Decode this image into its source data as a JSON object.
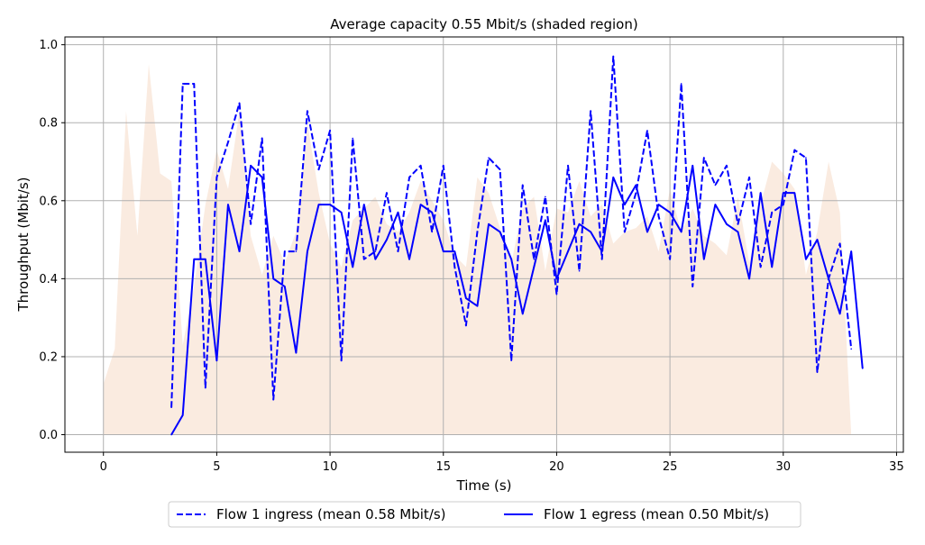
{
  "chart_data": {
    "type": "line",
    "title": "Average capacity 0.55 Mbit/s (shaded region)",
    "xlabel": "Time (s)",
    "ylabel": "Throughput (Mbit/s)",
    "xlim": [
      -1.7,
      35.3
    ],
    "ylim": [
      -0.045,
      1.02
    ],
    "xticks": [
      0,
      5,
      10,
      15,
      20,
      25,
      30,
      35
    ],
    "yticks": [
      0.0,
      0.2,
      0.4,
      0.6,
      0.8,
      1.0
    ],
    "xtick_labels": [
      "0",
      "5",
      "10",
      "15",
      "20",
      "25",
      "30",
      "35"
    ],
    "ytick_labels": [
      "0.0",
      "0.2",
      "0.4",
      "0.6",
      "0.8",
      "1.0"
    ],
    "grid": true,
    "legend_position": "bottom-center-outside",
    "capacity": {
      "color": "#faebe0",
      "x": [
        0,
        0.5,
        1,
        1.5,
        2,
        2.5,
        3,
        3.5,
        4,
        4.5,
        5,
        5.5,
        6,
        6.5,
        7,
        7.5,
        8,
        8.5,
        9,
        9.5,
        10,
        10.5,
        11,
        11.5,
        12,
        12.5,
        13,
        13.5,
        14,
        14.5,
        15,
        15.5,
        16,
        16.5,
        17,
        17.5,
        18,
        18.5,
        19,
        19.5,
        20,
        20.5,
        21,
        21.5,
        22,
        22.5,
        23,
        23.5,
        24,
        24.5,
        25,
        25.5,
        26,
        26.5,
        27,
        27.5,
        28,
        28.5,
        29,
        29.5,
        30,
        30.5,
        31,
        31.5,
        32,
        32.5,
        33
      ],
      "values": [
        0.13,
        0.22,
        0.83,
        0.51,
        0.95,
        0.67,
        0.65,
        0.23,
        0.38,
        0.59,
        0.73,
        0.63,
        0.83,
        0.51,
        0.41,
        0.51,
        0.44,
        0.52,
        0.8,
        0.62,
        0.49,
        0.43,
        0.55,
        0.58,
        0.61,
        0.54,
        0.52,
        0.57,
        0.65,
        0.6,
        0.55,
        0.46,
        0.43,
        0.66,
        0.62,
        0.53,
        0.44,
        0.58,
        0.61,
        0.42,
        0.58,
        0.57,
        0.65,
        0.56,
        0.59,
        0.49,
        0.52,
        0.53,
        0.56,
        0.47,
        0.63,
        0.52,
        0.58,
        0.51,
        0.49,
        0.46,
        0.61,
        0.44,
        0.59,
        0.7,
        0.67,
        0.63,
        0.41,
        0.52,
        0.7,
        0.57,
        0.0
      ]
    },
    "series": [
      {
        "name": "Flow 1 ingress (mean 0.58 Mbit/s)",
        "color": "#0000ff",
        "style": "dashed",
        "x": [
          3,
          3.5,
          4,
          4.5,
          5,
          5.5,
          6,
          6.5,
          7,
          7.5,
          8,
          8.5,
          9,
          9.5,
          10,
          10.5,
          11,
          11.5,
          12,
          12.5,
          13,
          13.5,
          14,
          14.5,
          15,
          15.5,
          16,
          16.5,
          17,
          17.5,
          18,
          18.5,
          19,
          19.5,
          20,
          20.5,
          21,
          21.5,
          22,
          22.5,
          23,
          23.5,
          24,
          24.5,
          25,
          25.5,
          26,
          26.5,
          27,
          27.5,
          28,
          28.5,
          29,
          29.5,
          30,
          30.5,
          31,
          31.5,
          32,
          32.5,
          33
        ],
        "values": [
          0.07,
          0.9,
          0.9,
          0.12,
          0.66,
          0.75,
          0.85,
          0.54,
          0.76,
          0.09,
          0.47,
          0.47,
          0.83,
          0.68,
          0.78,
          0.19,
          0.76,
          0.45,
          0.47,
          0.62,
          0.47,
          0.66,
          0.69,
          0.52,
          0.69,
          0.43,
          0.28,
          0.52,
          0.71,
          0.68,
          0.19,
          0.64,
          0.45,
          0.61,
          0.36,
          0.69,
          0.42,
          0.83,
          0.45,
          0.97,
          0.52,
          0.62,
          0.78,
          0.56,
          0.45,
          0.9,
          0.38,
          0.71,
          0.64,
          0.69,
          0.54,
          0.66,
          0.43,
          0.57,
          0.59,
          0.73,
          0.71,
          0.16,
          0.4,
          0.49,
          0.22
        ]
      },
      {
        "name": "Flow 1 egress (mean 0.50 Mbit/s)",
        "color": "#0000ff",
        "style": "solid",
        "x": [
          3,
          3.5,
          4,
          4.5,
          5,
          5.5,
          6,
          6.5,
          7,
          7.5,
          8,
          8.5,
          9,
          9.5,
          10,
          10.5,
          11,
          11.5,
          12,
          12.5,
          13,
          13.5,
          14,
          14.5,
          15,
          15.5,
          16,
          16.5,
          17,
          17.5,
          18,
          18.5,
          19,
          19.5,
          20,
          20.5,
          21,
          21.5,
          22,
          22.5,
          23,
          23.5,
          24,
          24.5,
          25,
          25.5,
          26,
          26.5,
          27,
          27.5,
          28,
          28.5,
          29,
          29.5,
          30,
          30.5,
          31,
          31.5,
          32,
          32.5,
          33,
          33.5
        ],
        "values": [
          0.0,
          0.05,
          0.45,
          0.45,
          0.19,
          0.59,
          0.47,
          0.69,
          0.66,
          0.4,
          0.38,
          0.21,
          0.47,
          0.59,
          0.59,
          0.57,
          0.43,
          0.59,
          0.45,
          0.5,
          0.57,
          0.45,
          0.59,
          0.57,
          0.47,
          0.47,
          0.35,
          0.33,
          0.54,
          0.52,
          0.45,
          0.31,
          0.43,
          0.55,
          0.4,
          0.47,
          0.54,
          0.52,
          0.47,
          0.66,
          0.59,
          0.64,
          0.52,
          0.59,
          0.57,
          0.52,
          0.69,
          0.45,
          0.59,
          0.54,
          0.52,
          0.4,
          0.62,
          0.43,
          0.62,
          0.62,
          0.45,
          0.5,
          0.4,
          0.31,
          0.47,
          0.17
        ]
      }
    ]
  }
}
